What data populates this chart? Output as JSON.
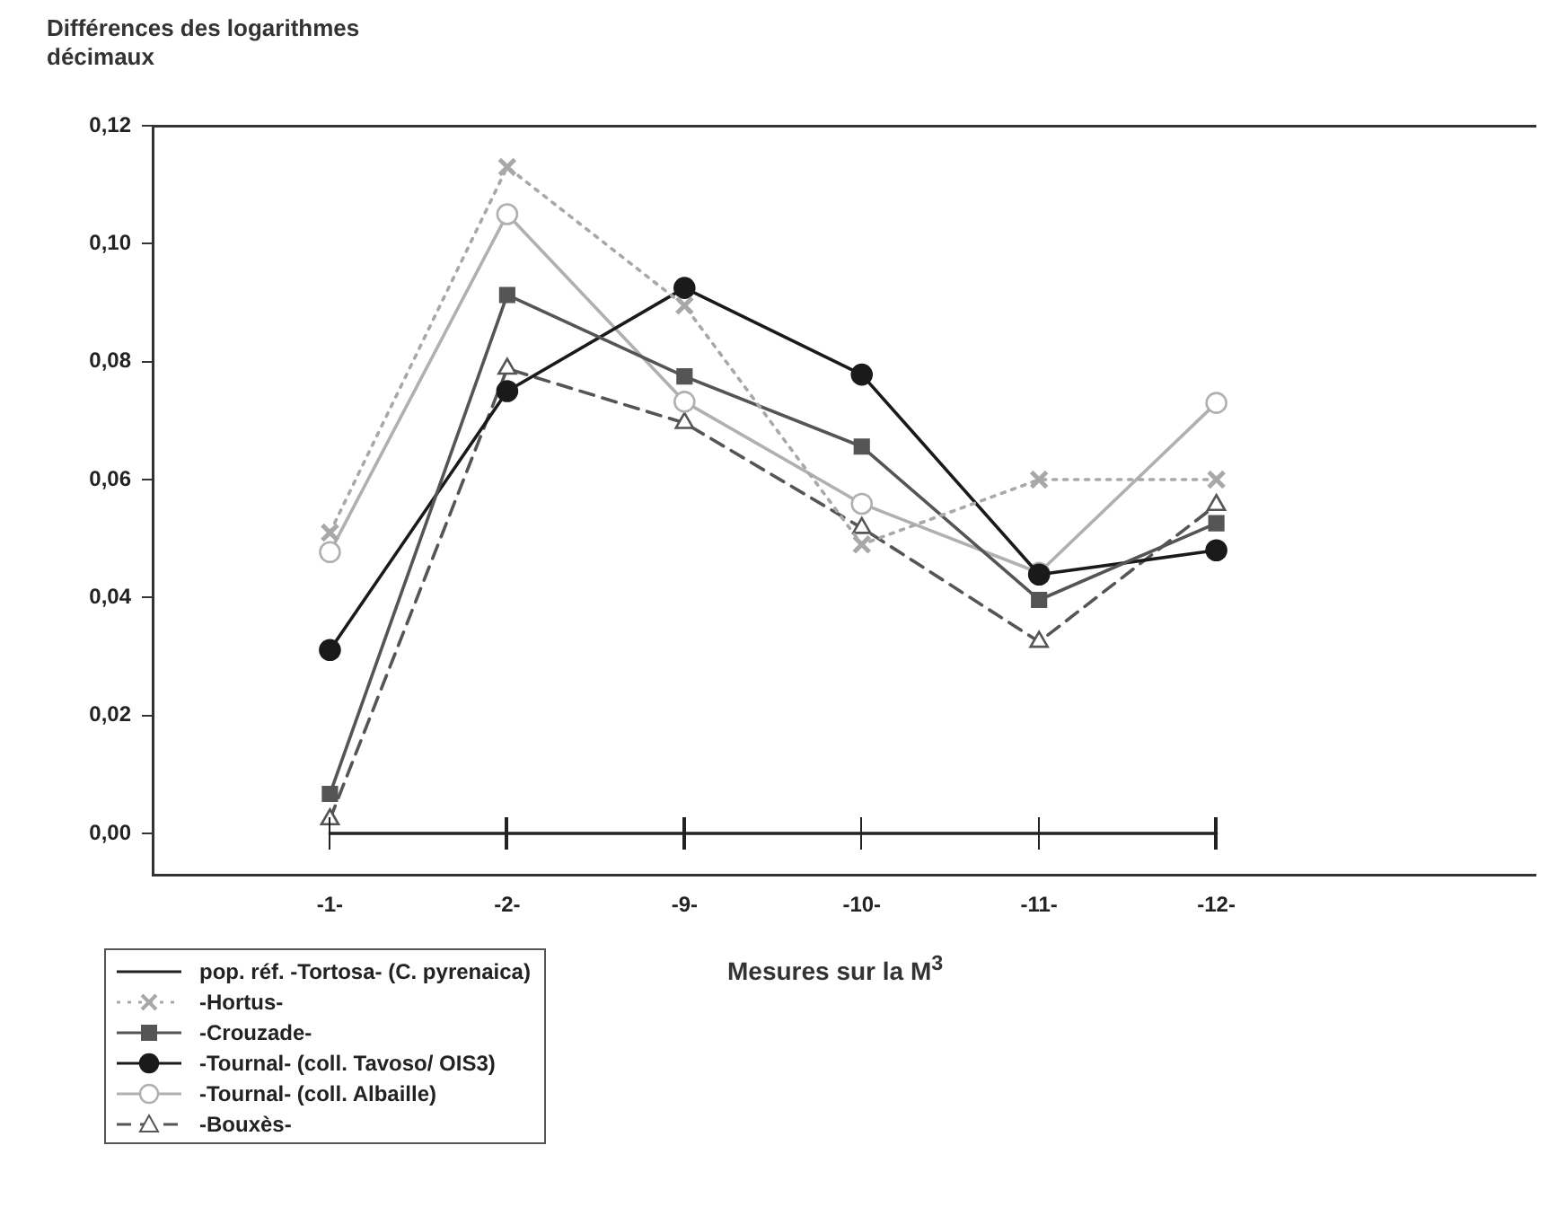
{
  "chart_data": {
    "type": "line",
    "ylabel": "Différences des logarithmes\ndécimaux",
    "xlabel": "Mesures sur la M$^{3}$",
    "categories": [
      "-1-",
      "-2-",
      "-9-",
      "-10-",
      "-11-",
      "-12-"
    ],
    "ylim": [
      -0.007,
      0.12
    ],
    "yticks": [
      {
        "value": 0,
        "label": "0,00"
      },
      {
        "value": 0.02,
        "label": "0,02"
      },
      {
        "value": 0.04,
        "label": "0,04"
      },
      {
        "value": 0.06,
        "label": "0,06"
      },
      {
        "value": 0.08,
        "label": "0,08"
      },
      {
        "value": 0.1,
        "label": "0,10"
      },
      {
        "value": 0.12,
        "label": "0,12"
      }
    ],
    "legend": "bottom left",
    "grid": false,
    "series": [
      {
        "name": "pop. réf. -Tortosa- (C. pyrenaica)",
        "color": "#222222",
        "marker": "none",
        "line_style": "solid",
        "values": [
          0,
          0,
          0,
          0,
          0,
          0
        ]
      },
      {
        "name": "-Hortus-",
        "color": "#a8a8a8",
        "marker": "cross",
        "line_style": "dotted",
        "values": [
          0.051,
          0.113,
          0.0895,
          0.049,
          0.06,
          0.06
        ]
      },
      {
        "name": "-Crouzade-",
        "color": "#555555",
        "marker": "square",
        "line_style": "solid",
        "values": [
          0.0067,
          0.0913,
          0.0775,
          0.0656,
          0.0396,
          0.0526
        ]
      },
      {
        "name": "-Tournal- (coll. Tavoso/ OIS3)",
        "color": "#1a1a1a",
        "marker": "circle",
        "line_style": "solid",
        "values": [
          0.0311,
          0.075,
          0.0925,
          0.0778,
          0.0439,
          0.048
        ]
      },
      {
        "name": "-Tournal- (coll. Albaille)",
        "color": "#b0b0b0",
        "marker": "circle",
        "line_style": "solid",
        "values": [
          0.0477,
          0.105,
          0.0732,
          0.0559,
          0.0442,
          0.073
        ]
      },
      {
        "name": "-Bouxès-",
        "color": "#555555",
        "marker": "triangle",
        "line_style": "dashed",
        "values": [
          0.0024,
          0.0788,
          0.0696,
          0.0518,
          0.0325,
          0.0557
        ]
      }
    ]
  }
}
